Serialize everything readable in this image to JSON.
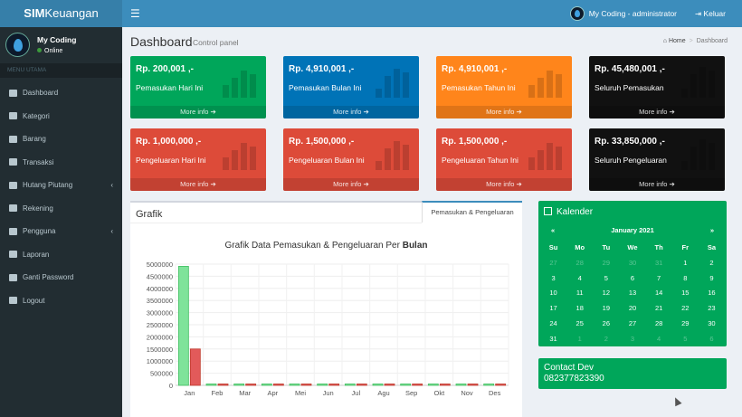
{
  "app": {
    "brand_bold": "SIM",
    "brand_rest": "Keuangan",
    "menu_icon": "☰"
  },
  "topbar": {
    "user": "My Coding - administrator",
    "logout": "Keluar"
  },
  "sidebar": {
    "name": "My Coding",
    "status": "Online",
    "header": "MENU UTAMA",
    "items": [
      {
        "label": "Dashboard",
        "icon": "dashboard-icon"
      },
      {
        "label": "Kategori",
        "icon": "folder-icon"
      },
      {
        "label": "Barang",
        "icon": "folder-icon"
      },
      {
        "label": "Transaksi",
        "icon": "folder-icon"
      },
      {
        "label": "Hutang Piutang",
        "icon": "money-icon",
        "chev": "‹"
      },
      {
        "label": "Rekening",
        "icon": "bank-icon"
      },
      {
        "label": "Pengguna",
        "icon": "users-icon",
        "chev": "‹"
      },
      {
        "label": "Laporan",
        "icon": "report-icon"
      },
      {
        "label": "Ganti Password",
        "icon": "lock-icon"
      },
      {
        "label": "Logout",
        "icon": "logout-icon"
      }
    ]
  },
  "page": {
    "title": "Dashboard",
    "subtitle": "Control panel",
    "crumb_home": "Home",
    "crumb_sep": ">",
    "crumb_current": "Dashboard"
  },
  "stat_boxes": [
    {
      "amount": "Rp. 200,001 ,-",
      "label": "Pemasukan Hari Ini",
      "more": "More info ➔",
      "color": "#00a65a"
    },
    {
      "amount": "Rp. 4,910,001 ,-",
      "label": "Pemasukan Bulan Ini",
      "more": "More info ➔",
      "color": "#0073b7"
    },
    {
      "amount": "Rp. 4,910,001 ,-",
      "label": "Pemasukan Tahun Ini",
      "more": "More info ➔",
      "color": "#ff851b"
    },
    {
      "amount": "Rp. 45,480,001 ,-",
      "label": "Seluruh Pemasukan",
      "more": "More info ➔",
      "color": "#111111"
    },
    {
      "amount": "Rp. 1,000,000 ,-",
      "label": "Pengeluaran Hari Ini",
      "more": "More info ➔",
      "color": "#dd4b39"
    },
    {
      "amount": "Rp. 1,500,000 ,-",
      "label": "Pengeluaran Bulan Ini",
      "more": "More info ➔",
      "color": "#dd4b39"
    },
    {
      "amount": "Rp. 1,500,000 ,-",
      "label": "Pengeluaran Tahun Ini",
      "more": "More info ➔",
      "color": "#dd4b39"
    },
    {
      "amount": "Rp. 33,850,000 ,-",
      "label": "Seluruh Pengeluaran",
      "more": "More info ➔",
      "color": "#111111"
    }
  ],
  "grafik": {
    "title": "Grafik",
    "tab": "Pemasukan & Pengeluaran"
  },
  "chart_data": {
    "type": "bar",
    "title_prefix": "Grafik Data Pemasukan & Pengeluaran Per ",
    "title_bold": "Bulan",
    "categories": [
      "Jan",
      "Feb",
      "Mar",
      "Apr",
      "Mei",
      "Jun",
      "Jul",
      "Agu",
      "Sep",
      "Okt",
      "Nov",
      "Des"
    ],
    "series": [
      {
        "name": "Pemasukan",
        "color": "#7fe39a",
        "values": [
          4910001,
          0,
          0,
          0,
          0,
          0,
          0,
          0,
          0,
          0,
          0,
          0
        ]
      },
      {
        "name": "Pengeluaran",
        "color": "#e25a5a",
        "values": [
          1500000,
          0,
          0,
          0,
          0,
          0,
          0,
          0,
          0,
          0,
          0,
          0
        ]
      }
    ],
    "ylim": [
      0,
      5000000
    ],
    "yticks": [
      0,
      500000,
      1000000,
      1500000,
      2000000,
      2500000,
      3000000,
      3500000,
      4000000,
      4500000,
      5000000
    ]
  },
  "calendar": {
    "title": "Kalender",
    "month": "January 2021",
    "prev": "«",
    "next": "»",
    "days": [
      "Su",
      "Mo",
      "Tu",
      "We",
      "Th",
      "Fr",
      "Sa"
    ],
    "cells": [
      {
        "d": "27",
        "o": true
      },
      {
        "d": "28",
        "o": true
      },
      {
        "d": "29",
        "o": true
      },
      {
        "d": "30",
        "o": true
      },
      {
        "d": "31",
        "o": true
      },
      {
        "d": "1"
      },
      {
        "d": "2"
      },
      {
        "d": "3"
      },
      {
        "d": "4"
      },
      {
        "d": "5"
      },
      {
        "d": "6"
      },
      {
        "d": "7"
      },
      {
        "d": "8"
      },
      {
        "d": "9"
      },
      {
        "d": "10"
      },
      {
        "d": "11"
      },
      {
        "d": "12"
      },
      {
        "d": "13"
      },
      {
        "d": "14"
      },
      {
        "d": "15"
      },
      {
        "d": "16"
      },
      {
        "d": "17"
      },
      {
        "d": "18"
      },
      {
        "d": "19"
      },
      {
        "d": "20"
      },
      {
        "d": "21"
      },
      {
        "d": "22"
      },
      {
        "d": "23"
      },
      {
        "d": "24"
      },
      {
        "d": "25"
      },
      {
        "d": "26"
      },
      {
        "d": "27"
      },
      {
        "d": "28"
      },
      {
        "d": "29"
      },
      {
        "d": "30"
      },
      {
        "d": "31"
      },
      {
        "d": "1",
        "o": true
      },
      {
        "d": "2",
        "o": true
      },
      {
        "d": "3",
        "o": true
      },
      {
        "d": "4",
        "o": true
      },
      {
        "d": "5",
        "o": true
      },
      {
        "d": "6",
        "o": true
      }
    ]
  },
  "contact": {
    "title": "Contact Dev",
    "phone": "082377823390"
  }
}
